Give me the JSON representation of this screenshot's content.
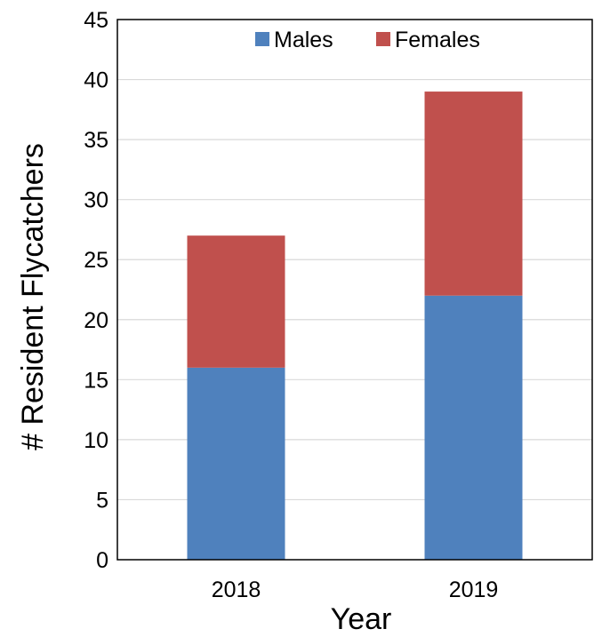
{
  "chart_data": {
    "type": "bar",
    "stacked": true,
    "categories": [
      "2018",
      "2019"
    ],
    "series": [
      {
        "name": "Males",
        "values": [
          16,
          22
        ],
        "color": "#4f81bd"
      },
      {
        "name": "Females",
        "values": [
          11,
          17
        ],
        "color": "#c0504d"
      }
    ],
    "xlabel": "Year",
    "ylabel": "# Resident Flycatchers",
    "ylim": [
      0,
      45
    ],
    "yticks": [
      "0",
      "5",
      "10",
      "15",
      "20",
      "25",
      "30",
      "35",
      "40",
      "45"
    ],
    "grid": true,
    "legend_position": "top-center"
  }
}
